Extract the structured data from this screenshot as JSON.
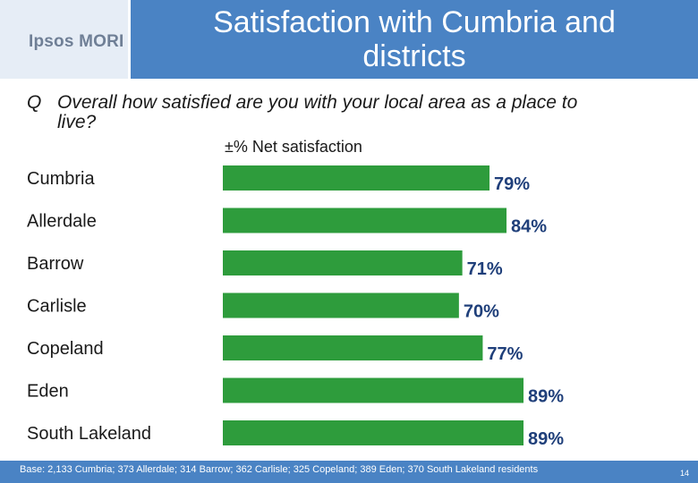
{
  "header": {
    "logo": "Ipsos MORI",
    "title_line1": "Satisfaction with Cumbria and",
    "title_line2": "districts"
  },
  "question": {
    "prefix": "Q",
    "text_line1": "Overall how satisfied are you with your local area as a place to",
    "text_line2": "live?"
  },
  "colors": {
    "bar": "#2e9c3c",
    "bar_border": "#ffffff",
    "title_band": "#4a83c4"
  },
  "chart_data": {
    "type": "bar",
    "orientation": "horizontal",
    "title": "±% Net satisfaction",
    "categories": [
      "Cumbria",
      "Allerdale",
      "Barrow",
      "Carlisle",
      "Copeland",
      "Eden",
      "South Lakeland"
    ],
    "values": [
      79,
      84,
      71,
      70,
      77,
      89,
      89
    ],
    "value_labels": [
      "79%",
      "84%",
      "71%",
      "70%",
      "77%",
      "89%",
      "89%"
    ],
    "xlim": [
      0,
      89
    ],
    "grid": false
  },
  "footer": {
    "base": "Base: 2,133 Cumbria; 373 Allerdale; 314 Barrow; 362 Carlisle; 325 Copeland; 389 Eden; 370 South Lakeland residents",
    "page": "14"
  }
}
